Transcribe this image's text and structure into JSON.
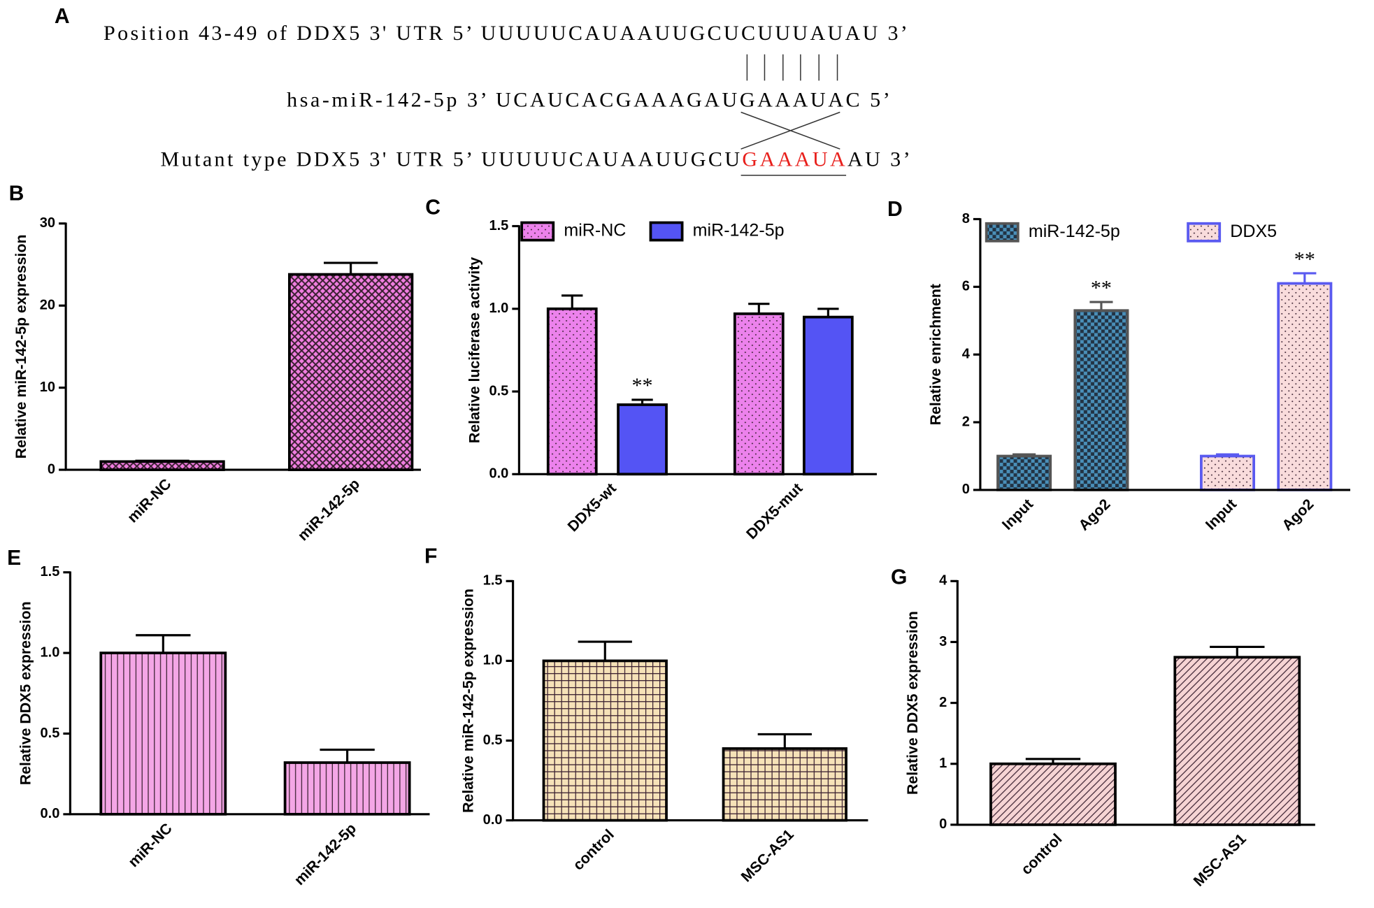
{
  "panel_a": {
    "label": "A",
    "line1": "Position 43-49 of DDX5 3' UTR 5’ UUUUUCAUAAUUGCUCUUUAUAU 3’",
    "line2": "hsa-miR-142-5p 3’ UCAUCACGAAAGAUGAAAUAC 5’",
    "line3_prefix": "Mutant type DDX5 3' UTR 5’ UUUUUCAUAAUUGCU",
    "line3_mutant": "GAAAUA",
    "line3_suffix": "AU 3’",
    "mutant_color": "#e8201c"
  },
  "chart_data": [
    {
      "panel_label": "B",
      "type": "bar",
      "ylabel": "Relative miR-142-5p expression",
      "categories": [
        "miR-NC",
        "miR-142-5p"
      ],
      "values": [
        1,
        23.8
      ],
      "errors": [
        0.1,
        1.4
      ],
      "color": "#f07ee0",
      "edgecolor": "#000000",
      "pattern": "diamond",
      "ylim": [
        0,
        30
      ],
      "yticks": [
        0,
        10,
        20,
        30
      ]
    },
    {
      "panel_label": "C",
      "type": "bar",
      "ylabel": "Relative luciferase activity",
      "categories": [
        "DDX5-wt",
        "DDX5-mut"
      ],
      "series": [
        {
          "name": "miR-NC",
          "color": "#ec82ec",
          "edgecolor": "#000000",
          "pattern": "dots",
          "values": [
            1.0,
            0.97
          ],
          "errors": [
            0.08,
            0.06
          ]
        },
        {
          "name": "miR-142-5p",
          "color": "#5454f4",
          "edgecolor": "#000000",
          "pattern": "solid",
          "values": [
            0.42,
            0.95
          ],
          "errors": [
            0.03,
            0.05
          ]
        }
      ],
      "annotations": [
        {
          "text": "**",
          "series": 1,
          "index": 0
        }
      ],
      "ylim": [
        0,
        1.5
      ],
      "yticks": [
        {
          "value": 0,
          "label": "0.0"
        },
        {
          "value": 0.5,
          "label": "0.5"
        },
        {
          "value": 1,
          "label": "1.0"
        },
        {
          "value": 1.5,
          "label": "1.5"
        }
      ]
    },
    {
      "panel_label": "D",
      "type": "bar",
      "ylabel": "Relative enrichment",
      "categories": [
        "Input",
        "Ago2",
        "Input",
        "Ago2"
      ],
      "series": [
        {
          "name": "miR-142-5p",
          "color": "#4a8fb8",
          "edgecolor": "#555555",
          "pattern": "checker",
          "values": [
            1.0,
            5.3,
            null,
            null
          ],
          "errors": [
            0.05,
            0.25,
            null,
            null
          ]
        },
        {
          "name": "DDX5",
          "color": "#f9dcdc",
          "edgecolor": "#5a5af0",
          "pattern": "dots",
          "values": [
            null,
            null,
            1.0,
            6.1
          ],
          "errors": [
            null,
            null,
            0.05,
            0.3
          ]
        }
      ],
      "annotations": [
        {
          "text": "**",
          "series": 0,
          "index": 1
        },
        {
          "text": "**",
          "series": 1,
          "index": 3
        }
      ],
      "ylim": [
        0,
        8
      ],
      "yticks": [
        0,
        2,
        4,
        6,
        8
      ]
    },
    {
      "panel_label": "E",
      "type": "bar",
      "ylabel": "Relative DDX5 expression",
      "categories": [
        "miR-NC",
        "miR-142-5p"
      ],
      "values": [
        1.0,
        0.32
      ],
      "errors": [
        0.11,
        0.08
      ],
      "color": "#f4a6e6",
      "edgecolor": "#000000",
      "pattern": "vlines",
      "ylim": [
        0,
        1.5
      ],
      "yticks": [
        {
          "value": 0,
          "label": "0.0"
        },
        {
          "value": 0.5,
          "label": "0.5"
        },
        {
          "value": 1,
          "label": "1.0"
        },
        {
          "value": 1.5,
          "label": "1.5"
        }
      ]
    },
    {
      "panel_label": "F",
      "type": "bar",
      "ylabel": "Relative miR-142-5p expression",
      "categories": [
        "control",
        "MSC-AS1"
      ],
      "values": [
        1.0,
        0.45
      ],
      "errors": [
        0.12,
        0.09
      ],
      "color": "#f6e2b8",
      "edgecolor": "#000000",
      "pattern": "grid",
      "ylim": [
        0,
        1.5
      ],
      "yticks": [
        {
          "value": 0,
          "label": "0.0"
        },
        {
          "value": 0.5,
          "label": "0.5"
        },
        {
          "value": 1,
          "label": "1.0"
        },
        {
          "value": 1.5,
          "label": "1.5"
        }
      ]
    },
    {
      "panel_label": "G",
      "type": "bar",
      "ylabel": "Relative DDX5 expression",
      "categories": [
        "control",
        "MSC-AS1"
      ],
      "values": [
        1.0,
        2.75
      ],
      "errors": [
        0.08,
        0.17
      ],
      "color": "#f6d4d4",
      "edgecolor": "#000000",
      "pattern": "diag",
      "ylim": [
        0,
        4
      ],
      "yticks": [
        0,
        1,
        2,
        3,
        4
      ]
    }
  ]
}
